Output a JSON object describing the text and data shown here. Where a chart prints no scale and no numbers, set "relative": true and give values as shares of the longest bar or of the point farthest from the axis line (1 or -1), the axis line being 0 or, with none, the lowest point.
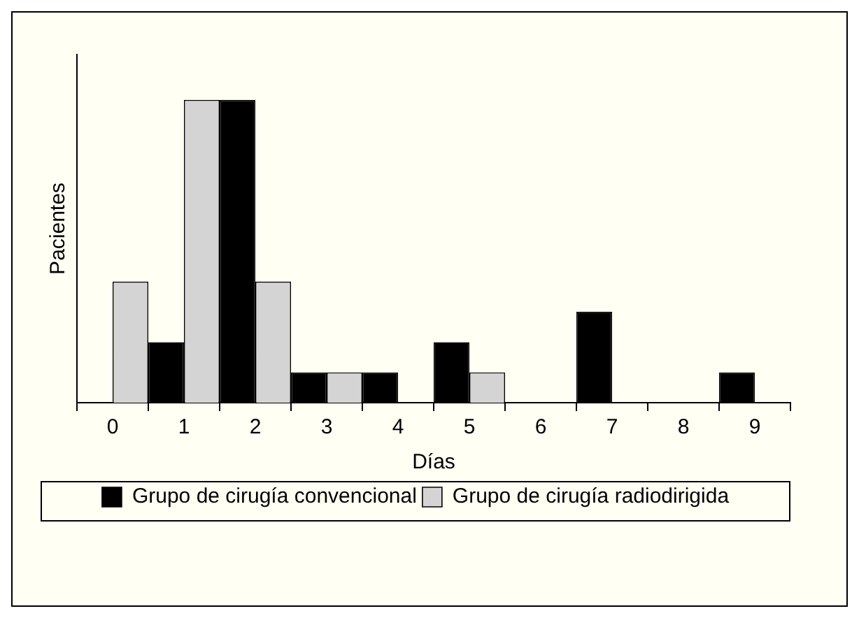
{
  "chart_data": {
    "type": "bar",
    "relative": true,
    "xlabel": "Días",
    "ylabel": "Pacientes",
    "categories": [
      "0",
      "1",
      "2",
      "3",
      "4",
      "5",
      "6",
      "7",
      "8",
      "9"
    ],
    "series": [
      {
        "name": "Grupo de cirugía convencional",
        "color": "#000000",
        "values": [
          0,
          0.2,
          1,
          0.1,
          0.1,
          0.2,
          0,
          0.3,
          0,
          0.1
        ]
      },
      {
        "name": "Grupo de cirugía radiodirigida",
        "color": "#d4d4d4",
        "values": [
          0.4,
          1,
          0.4,
          0.1,
          0,
          0.1,
          0,
          0,
          0,
          0
        ]
      }
    ],
    "legend": "bottom",
    "grid": false
  }
}
